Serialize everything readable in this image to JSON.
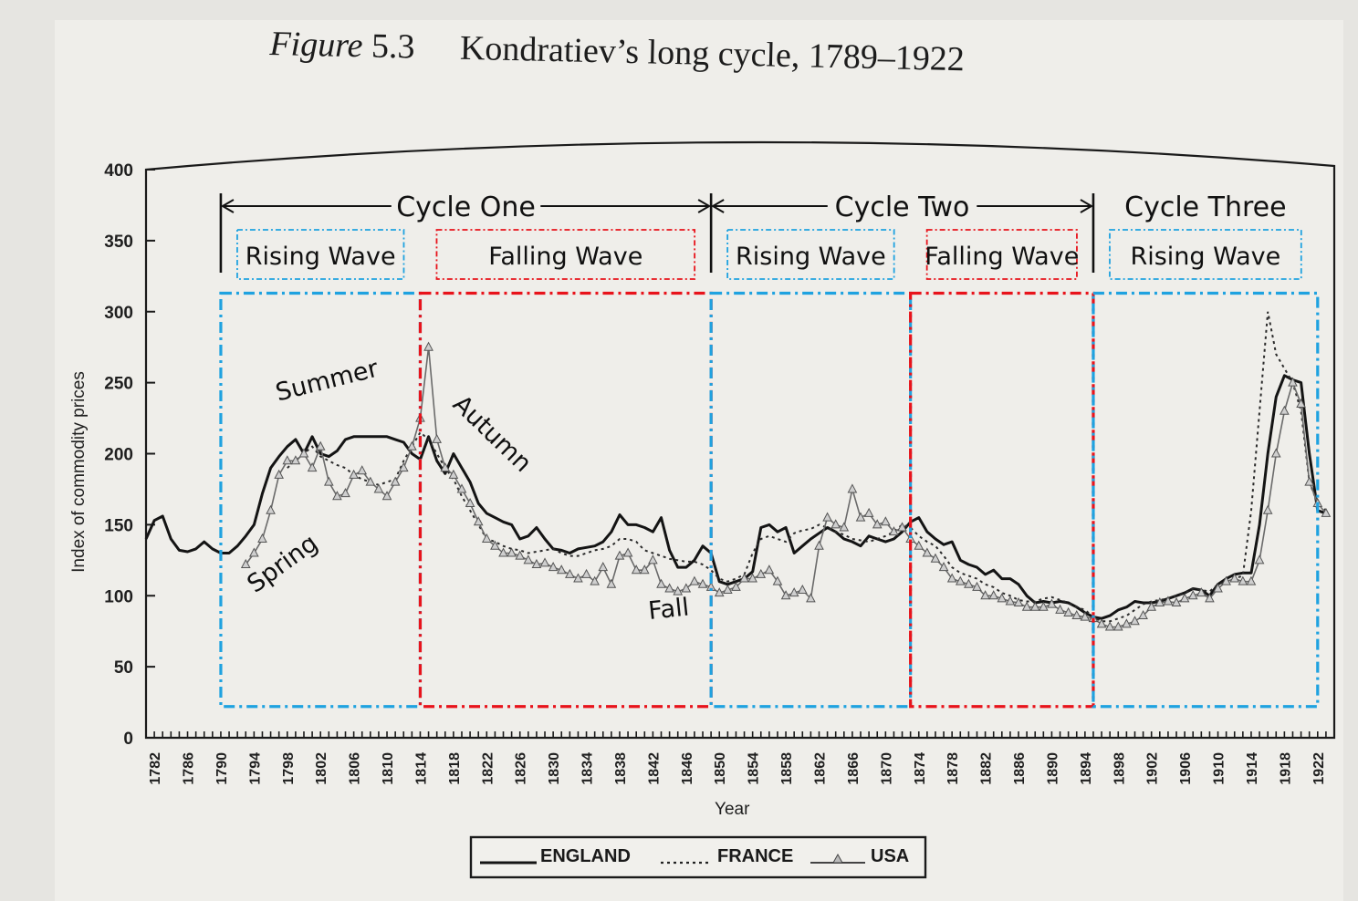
{
  "figure": {
    "label": "Figure",
    "number": "5.3",
    "title": "Kondratiev’s long cycle, 1789–1922"
  },
  "colors": {
    "rising": "#1fa2e0",
    "falling": "#e8131b",
    "ink": "#1a1a1a"
  },
  "chart_data": {
    "type": "line",
    "xlabel": "Year",
    "ylabel": "Index of commodity prices",
    "xlim": [
      1781,
      1924
    ],
    "ylim": [
      0,
      400
    ],
    "yticks": [
      0,
      50,
      100,
      150,
      200,
      250,
      300,
      350,
      400
    ],
    "xticks": [
      1782,
      1786,
      1790,
      1794,
      1798,
      1802,
      1806,
      1810,
      1814,
      1818,
      1822,
      1826,
      1830,
      1834,
      1838,
      1842,
      1846,
      1850,
      1854,
      1858,
      1862,
      1866,
      1870,
      1874,
      1878,
      1882,
      1886,
      1890,
      1894,
      1898,
      1902,
      1906,
      1910,
      1914,
      1918,
      1922
    ],
    "series": [
      {
        "name": "ENGLAND",
        "style": "solid",
        "x": [
          1781,
          1782,
          1783,
          1784,
          1785,
          1786,
          1787,
          1788,
          1789,
          1790,
          1791,
          1792,
          1793,
          1794,
          1795,
          1796,
          1797,
          1798,
          1799,
          1800,
          1801,
          1802,
          1803,
          1804,
          1805,
          1806,
          1807,
          1808,
          1809,
          1810,
          1811,
          1812,
          1813,
          1814,
          1815,
          1816,
          1817,
          1818,
          1819,
          1820,
          1821,
          1822,
          1823,
          1824,
          1825,
          1826,
          1827,
          1828,
          1829,
          1830,
          1831,
          1832,
          1833,
          1834,
          1835,
          1836,
          1837,
          1838,
          1839,
          1840,
          1841,
          1842,
          1843,
          1844,
          1845,
          1846,
          1847,
          1848,
          1849,
          1850,
          1851,
          1852,
          1853,
          1854,
          1855,
          1856,
          1857,
          1858,
          1859,
          1860,
          1861,
          1862,
          1863,
          1864,
          1865,
          1866,
          1867,
          1868,
          1869,
          1870,
          1871,
          1872,
          1873,
          1874,
          1875,
          1876,
          1877,
          1878,
          1879,
          1880,
          1881,
          1882,
          1883,
          1884,
          1885,
          1886,
          1887,
          1888,
          1889,
          1890,
          1891,
          1892,
          1893,
          1894,
          1895,
          1896,
          1897,
          1898,
          1899,
          1900,
          1901,
          1902,
          1903,
          1904,
          1905,
          1906,
          1907,
          1908,
          1909,
          1910,
          1911,
          1912,
          1913,
          1914,
          1915,
          1916,
          1917,
          1918,
          1919,
          1920,
          1921,
          1922,
          1923
        ],
        "values": [
          140,
          153,
          156,
          140,
          132,
          131,
          133,
          138,
          133,
          130,
          130,
          135,
          142,
          150,
          172,
          190,
          198,
          205,
          210,
          200,
          212,
          200,
          198,
          202,
          210,
          212,
          212,
          212,
          212,
          212,
          210,
          208,
          200,
          196,
          212,
          195,
          186,
          200,
          190,
          180,
          165,
          158,
          155,
          152,
          150,
          140,
          142,
          148,
          140,
          133,
          132,
          130,
          133,
          134,
          135,
          138,
          145,
          157,
          150,
          150,
          148,
          145,
          155,
          132,
          120,
          120,
          125,
          135,
          130,
          110,
          108,
          110,
          112,
          117,
          148,
          150,
          145,
          148,
          130,
          135,
          140,
          144,
          148,
          145,
          140,
          138,
          135,
          142,
          140,
          138,
          140,
          145,
          152,
          155,
          145,
          140,
          136,
          138,
          125,
          122,
          120,
          115,
          118,
          112,
          112,
          108,
          100,
          95,
          96,
          95,
          96,
          95,
          92,
          88,
          85,
          84,
          86,
          90,
          92,
          96,
          95,
          95,
          96,
          98,
          100,
          102,
          105,
          104,
          100,
          108,
          112,
          115,
          116,
          116,
          150,
          200,
          240,
          255,
          252,
          250,
          200,
          160,
          158
        ]
      },
      {
        "name": "FRANCE",
        "style": "dotted",
        "x": [
          1798,
          1799,
          1800,
          1801,
          1802,
          1803,
          1804,
          1805,
          1806,
          1807,
          1808,
          1809,
          1810,
          1811,
          1812,
          1813,
          1814,
          1815,
          1816,
          1817,
          1818,
          1819,
          1820,
          1821,
          1822,
          1823,
          1824,
          1825,
          1826,
          1827,
          1828,
          1829,
          1830,
          1831,
          1832,
          1833,
          1834,
          1835,
          1836,
          1837,
          1838,
          1839,
          1840,
          1841,
          1842,
          1843,
          1844,
          1845,
          1846,
          1847,
          1848,
          1849,
          1850,
          1851,
          1852,
          1853,
          1854,
          1855,
          1856,
          1857,
          1858,
          1859,
          1860,
          1861,
          1862,
          1863,
          1864,
          1865,
          1866,
          1867,
          1868,
          1869,
          1870,
          1871,
          1872,
          1873,
          1874,
          1875,
          1876,
          1877,
          1878,
          1879,
          1880,
          1881,
          1882,
          1883,
          1884,
          1885,
          1886,
          1887,
          1888,
          1889,
          1890,
          1891,
          1892,
          1893,
          1894,
          1895,
          1896,
          1897,
          1898,
          1899,
          1900,
          1901,
          1902,
          1903,
          1904,
          1905,
          1906,
          1907,
          1908,
          1909,
          1910,
          1911,
          1912,
          1913,
          1914,
          1915,
          1916,
          1917,
          1918,
          1919,
          1920,
          1921,
          1922,
          1923
        ],
        "values": [
          190,
          195,
          200,
          205,
          198,
          195,
          192,
          190,
          185,
          182,
          180,
          178,
          180,
          182,
          195,
          205,
          215,
          210,
          200,
          190,
          182,
          170,
          160,
          150,
          140,
          138,
          135,
          133,
          132,
          130,
          131,
          132,
          133,
          130,
          128,
          128,
          130,
          132,
          133,
          135,
          140,
          140,
          138,
          132,
          130,
          128,
          126,
          125,
          124,
          124,
          122,
          118,
          112,
          110,
          112,
          115,
          130,
          140,
          142,
          140,
          138,
          144,
          146,
          147,
          150,
          148,
          145,
          143,
          140,
          139,
          138,
          140,
          142,
          145,
          150,
          148,
          142,
          138,
          135,
          128,
          120,
          116,
          114,
          112,
          108,
          106,
          102,
          100,
          97,
          96,
          96,
          98,
          99,
          97,
          95,
          92,
          90,
          85,
          82,
          82,
          84,
          86,
          90,
          94,
          96,
          97,
          98,
          100,
          102,
          105,
          104,
          103,
          108,
          110,
          112,
          114,
          160,
          230,
          300,
          270,
          260,
          250,
          230,
          180,
          165,
          160
        ]
      },
      {
        "name": "USA",
        "style": "triangle",
        "x": [
          1793,
          1794,
          1795,
          1796,
          1797,
          1798,
          1799,
          1800,
          1801,
          1802,
          1803,
          1804,
          1805,
          1806,
          1807,
          1808,
          1809,
          1810,
          1811,
          1812,
          1813,
          1814,
          1815,
          1816,
          1817,
          1818,
          1819,
          1820,
          1821,
          1822,
          1823,
          1824,
          1825,
          1826,
          1827,
          1828,
          1829,
          1830,
          1831,
          1832,
          1833,
          1834,
          1835,
          1836,
          1837,
          1838,
          1839,
          1840,
          1841,
          1842,
          1843,
          1844,
          1845,
          1846,
          1847,
          1848,
          1849,
          1850,
          1851,
          1852,
          1853,
          1854,
          1855,
          1856,
          1857,
          1858,
          1859,
          1860,
          1861,
          1862,
          1863,
          1864,
          1865,
          1866,
          1867,
          1868,
          1869,
          1870,
          1871,
          1872,
          1873,
          1874,
          1875,
          1876,
          1877,
          1878,
          1879,
          1880,
          1881,
          1882,
          1883,
          1884,
          1885,
          1886,
          1887,
          1888,
          1889,
          1890,
          1891,
          1892,
          1893,
          1894,
          1895,
          1896,
          1897,
          1898,
          1899,
          1900,
          1901,
          1902,
          1903,
          1904,
          1905,
          1906,
          1907,
          1908,
          1909,
          1910,
          1911,
          1912,
          1913,
          1914,
          1915,
          1916,
          1917,
          1918,
          1919,
          1920,
          1921,
          1922,
          1923
        ],
        "values": [
          122,
          130,
          140,
          160,
          185,
          195,
          195,
          200,
          190,
          205,
          180,
          170,
          172,
          185,
          188,
          180,
          175,
          170,
          180,
          190,
          205,
          225,
          275,
          210,
          190,
          185,
          175,
          165,
          152,
          140,
          135,
          130,
          130,
          128,
          125,
          122,
          123,
          120,
          118,
          115,
          112,
          115,
          110,
          120,
          108,
          128,
          130,
          118,
          118,
          125,
          108,
          105,
          103,
          105,
          110,
          108,
          106,
          102,
          104,
          106,
          112,
          112,
          115,
          118,
          110,
          100,
          102,
          104,
          98,
          135,
          155,
          150,
          148,
          175,
          155,
          158,
          150,
          152,
          145,
          148,
          140,
          135,
          130,
          126,
          120,
          112,
          110,
          108,
          106,
          100,
          100,
          98,
          96,
          95,
          92,
          92,
          92,
          94,
          90,
          88,
          86,
          85,
          84,
          80,
          78,
          78,
          80,
          82,
          86,
          92,
          95,
          96,
          95,
          98,
          100,
          102,
          98,
          105,
          110,
          112,
          110,
          110,
          125,
          160,
          200,
          230,
          250,
          235,
          180,
          165,
          158
        ]
      }
    ],
    "legend": [
      "ENGLAND",
      "FRANCE",
      "USA"
    ],
    "legend_position": "bottom-center"
  },
  "annotations": {
    "cycles": [
      {
        "label": "Cycle One",
        "start": 1790,
        "end": 1849
      },
      {
        "label": "Cycle Two",
        "start": 1849,
        "end": 1895
      },
      {
        "label": "Cycle Three",
        "start": 1895,
        "end": 1922
      }
    ],
    "waves": [
      {
        "label": "Rising Wave",
        "kind": "rising",
        "start": 1790,
        "end": 1814
      },
      {
        "label": "Falling Wave",
        "kind": "falling",
        "start": 1814,
        "end": 1849
      },
      {
        "label": "Rising Wave",
        "kind": "rising",
        "start": 1849,
        "end": 1873
      },
      {
        "label": "Falling Wave",
        "kind": "falling",
        "start": 1873,
        "end": 1895
      },
      {
        "label": "Rising Wave",
        "kind": "rising",
        "start": 1895,
        "end": 1922
      }
    ],
    "seasons": [
      {
        "label": "Summer",
        "year": 1803,
        "value": 246,
        "rotate": -14
      },
      {
        "label": "Autumn",
        "year": 1822,
        "value": 210,
        "rotate": 44
      },
      {
        "label": "Spring",
        "year": 1798,
        "value": 118,
        "rotate": -36
      },
      {
        "label": "Fall",
        "year": 1844,
        "value": 85,
        "rotate": -6
      }
    ]
  }
}
